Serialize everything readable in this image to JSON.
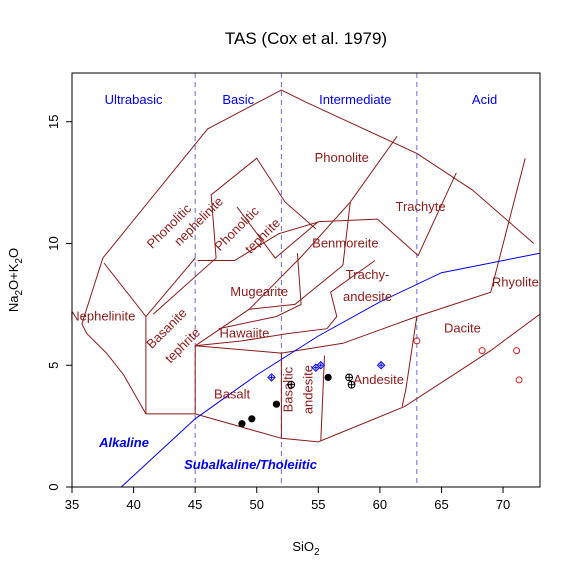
{
  "chart_data": {
    "type": "scatter",
    "title": "TAS (Cox et al. 1979)",
    "xlabel": "SiO",
    "xlabel_sub": "2",
    "ylabel_parts": [
      "Na",
      "2",
      "O+K",
      "2",
      "O"
    ],
    "xlim": [
      35,
      73
    ],
    "ylim": [
      0,
      17
    ],
    "x_ticks": [
      35,
      40,
      45,
      50,
      55,
      60,
      65,
      70
    ],
    "y_ticks": [
      0,
      5,
      10,
      15
    ],
    "grid": false,
    "legend": "none",
    "silica_classes": [
      {
        "label": "Ultrabasic",
        "x": 40,
        "y": 15.9
      },
      {
        "label": "Basic",
        "x": 48.5,
        "y": 15.9
      },
      {
        "label": "Intermediate",
        "x": 58,
        "y": 15.9
      },
      {
        "label": "Acid",
        "x": 68.5,
        "y": 15.9
      }
    ],
    "class_boundaries": [
      45,
      52,
      63
    ],
    "fields": [
      {
        "name": "Nephelinite",
        "x": 37.5,
        "y": 7.0,
        "rot": 0
      },
      {
        "name": "Basanite",
        "x": 42.7,
        "y": 6.5,
        "rot": -45
      },
      {
        "name": "tephrite",
        "x": 44.0,
        "y": 5.8,
        "rot": -45
      },
      {
        "name": "Phonolitic",
        "x": 42.9,
        "y": 10.7,
        "rot": -45
      },
      {
        "name": "nephelinite",
        "x": 45.3,
        "y": 10.9,
        "rot": -45
      },
      {
        "name": "Phonolitic",
        "x": 48.4,
        "y": 10.6,
        "rot": -45
      },
      {
        "name": "tephrite",
        "x": 50.5,
        "y": 10.3,
        "rot": -45
      },
      {
        "name": "Phonolite",
        "x": 56.9,
        "y": 13.5,
        "rot": 0
      },
      {
        "name": "Trachyte",
        "x": 63.3,
        "y": 11.5,
        "rot": 0
      },
      {
        "name": "Benmoreite",
        "x": 57.2,
        "y": 10.0,
        "rot": 0
      },
      {
        "name": "Mugearite",
        "x": 50.2,
        "y": 8.0,
        "rot": 0
      },
      {
        "name": "Trachy-",
        "x": 59.0,
        "y": 8.7,
        "rot": 0
      },
      {
        "name": "andesite",
        "x": 59.0,
        "y": 7.8,
        "rot": 0
      },
      {
        "name": "Hawaiite",
        "x": 49.0,
        "y": 6.3,
        "rot": 0
      },
      {
        "name": "Rhyolite",
        "x": 71.0,
        "y": 8.4,
        "rot": 0
      },
      {
        "name": "Dacite",
        "x": 66.7,
        "y": 6.5,
        "rot": 0
      },
      {
        "name": "Basalt",
        "x": 48.0,
        "y": 3.8,
        "rot": 0
      },
      {
        "name": "Basaltic",
        "x": 52.6,
        "y": 4.0,
        "rot": -90
      },
      {
        "name": "andesite",
        "x": 54.2,
        "y": 4.0,
        "rot": -90
      },
      {
        "name": "Andesite",
        "x": 59.9,
        "y": 4.4,
        "rot": 0
      }
    ],
    "field_boundaries": [
      [
        [
          41,
          3.0
        ],
        [
          45,
          3.0
        ],
        [
          52,
          2.0
        ],
        [
          55,
          1.85
        ],
        [
          62,
          3.3
        ],
        [
          69,
          5.6
        ],
        [
          73,
          7.1
        ]
      ],
      [
        [
          41,
          3.0
        ],
        [
          39.2,
          4.6
        ],
        [
          37.8,
          5.5
        ],
        [
          36.2,
          6.3
        ],
        [
          35.8,
          6.7
        ],
        [
          37.5,
          9.4
        ],
        [
          46,
          14.7
        ],
        [
          52,
          16.3
        ],
        [
          54,
          15.8
        ],
        [
          63,
          13.7
        ],
        [
          67.5,
          12.2
        ],
        [
          72.5,
          10.0
        ]
      ],
      [
        [
          41,
          3.0
        ],
        [
          41,
          7.0
        ],
        [
          45,
          9.4
        ]
      ],
      [
        [
          41,
          7.0
        ],
        [
          37.6,
          9.2
        ]
      ],
      [
        [
          45,
          3.0
        ],
        [
          45,
          5.8
        ],
        [
          49.4,
          7.3
        ],
        [
          53.7,
          9.5
        ],
        [
          57.6,
          11.7
        ],
        [
          61.4,
          14.4
        ]
      ],
      [
        [
          45,
          5.8
        ],
        [
          52,
          5.5
        ],
        [
          57.0,
          5.9
        ],
        [
          63,
          7.0
        ],
        [
          69,
          8.0
        ],
        [
          71.8,
          13.5
        ]
      ],
      [
        [
          45,
          5.8
        ],
        [
          48.8,
          6.0
        ],
        [
          52.5,
          6.3
        ],
        [
          55.7,
          6.5
        ],
        [
          56.5,
          7.0
        ],
        [
          56.0,
          8.0
        ],
        [
          59.6,
          9.3
        ]
      ],
      [
        [
          49.4,
          7.3
        ],
        [
          53.1,
          7.5
        ],
        [
          57.0,
          9.1
        ],
        [
          57.6,
          11.7
        ]
      ],
      [
        [
          45.2,
          9.3
        ],
        [
          48.2,
          9.3
        ],
        [
          51.8,
          10.4
        ],
        [
          55.1,
          10.9
        ],
        [
          59.8,
          11.0
        ],
        [
          63.1,
          9.5
        ],
        [
          66.2,
          12.9
        ]
      ],
      [
        [
          52,
          5.5
        ],
        [
          52,
          2.0
        ]
      ],
      [
        [
          55.5,
          5.4
        ],
        [
          55.2,
          1.9
        ]
      ],
      [
        [
          63,
          7.0
        ],
        [
          62.1,
          4.0
        ],
        [
          61.8,
          3.3
        ]
      ],
      [
        [
          48.4,
          11.5
        ],
        [
          51.5,
          9.4
        ],
        [
          55.0,
          10.9
        ]
      ],
      [
        [
          41.6,
          7.1
        ],
        [
          46.7,
          9.4
        ],
        [
          46.3,
          12.0
        ],
        [
          50.0,
          13.5
        ],
        [
          52.3,
          11.7
        ],
        [
          54.8,
          10.6
        ]
      ],
      [
        [
          53.3,
          9.6
        ],
        [
          53.6,
          7.5
        ],
        [
          51.6,
          7.0
        ],
        [
          46.9,
          6.5
        ]
      ]
    ],
    "subalkaline_line": [
      [
        39,
        0
      ],
      [
        45,
        2.8
      ],
      [
        50,
        4.6
      ],
      [
        55,
        6.2
      ],
      [
        60,
        7.6
      ],
      [
        65,
        8.8
      ],
      [
        73,
        9.6
      ]
    ],
    "series": [
      {
        "kind": "filled-circle",
        "color": "#000000",
        "points": [
          [
            48.8,
            2.6
          ],
          [
            49.6,
            2.8
          ],
          [
            51.6,
            3.4
          ],
          [
            55.8,
            4.5
          ]
        ]
      },
      {
        "kind": "circled-plus",
        "color": "#000000",
        "points": [
          [
            52.8,
            4.2
          ],
          [
            57.7,
            4.2
          ],
          [
            57.5,
            4.5
          ]
        ]
      },
      {
        "kind": "blue-diamond",
        "color": "#0000ff",
        "points": [
          [
            51.2,
            4.5
          ],
          [
            55.2,
            5.0
          ],
          [
            54.8,
            4.9
          ],
          [
            60.1,
            5.0
          ]
        ]
      },
      {
        "kind": "open-circle",
        "color": "#dd2222",
        "points": [
          [
            63.0,
            6.0
          ],
          [
            68.3,
            5.6
          ],
          [
            71.1,
            5.6
          ],
          [
            71.3,
            4.4
          ]
        ]
      }
    ],
    "annotations": [
      {
        "text": "Alkaline",
        "x": 37.2,
        "y": 1.8,
        "style": "series"
      },
      {
        "text": "Subalkaline/Tholeiitic",
        "x": 44.1,
        "y": 0.9,
        "style": "series"
      }
    ]
  }
}
